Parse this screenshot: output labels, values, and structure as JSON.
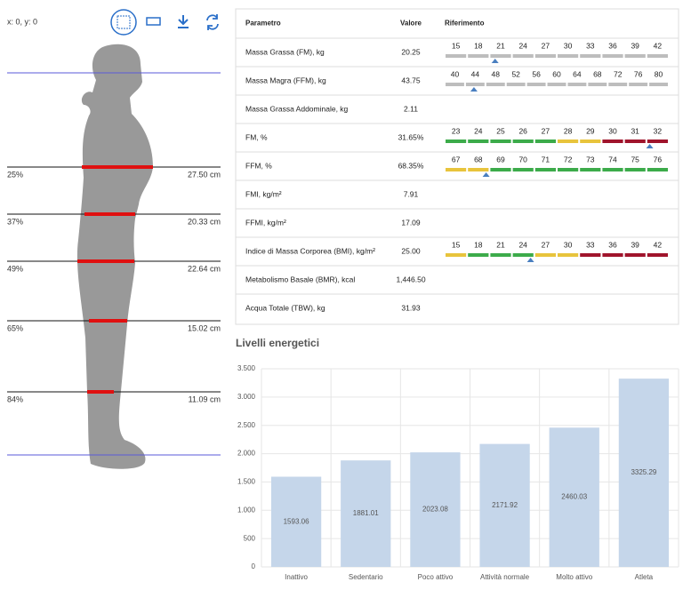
{
  "panel": {
    "coords": "x: 0, y: 0",
    "measures": [
      {
        "percent": "25%",
        "circumference": "27.50 cm"
      },
      {
        "percent": "37%",
        "circumference": "20.33 cm"
      },
      {
        "percent": "49%",
        "circumference": "22.64 cm"
      },
      {
        "percent": "65%",
        "circumference": "15.02 cm"
      },
      {
        "percent": "84%",
        "circumference": "11.09 cm"
      }
    ]
  },
  "table": {
    "headers": [
      "Parametro",
      "Valore",
      "Riferimento"
    ],
    "rows": [
      {
        "name": "Massa Grassa (FM), kg",
        "value": "20.25",
        "scale": {
          "ticks": [
            15,
            18,
            21,
            24,
            27,
            30,
            33,
            36,
            39,
            42
          ],
          "colors": [
            "#bdbdbd",
            "#bdbdbd",
            "#bdbdbd",
            "#bdbdbd",
            "#bdbdbd",
            "#bdbdbd",
            "#bdbdbd",
            "#bdbdbd",
            "#bdbdbd",
            "#bdbdbd"
          ]
        }
      },
      {
        "name": "Massa Magra (FFM), kg",
        "value": "43.75",
        "scale": {
          "ticks": [
            40,
            44,
            48,
            52,
            56,
            60,
            64,
            68,
            72,
            76,
            80
          ],
          "colors": [
            "#bdbdbd",
            "#bdbdbd",
            "#bdbdbd",
            "#bdbdbd",
            "#bdbdbd",
            "#bdbdbd",
            "#bdbdbd",
            "#bdbdbd",
            "#bdbdbd",
            "#bdbdbd",
            "#bdbdbd"
          ]
        }
      },
      {
        "name": "Massa Grassa Addominale, kg",
        "value": "2.11"
      },
      {
        "name": "FM, %",
        "value": "31.65%",
        "scale": {
          "ticks": [
            23,
            24,
            25,
            26,
            27,
            28,
            29,
            30,
            31,
            32
          ],
          "colors": [
            "#3cab4a",
            "#3cab4a",
            "#3cab4a",
            "#3cab4a",
            "#3cab4a",
            "#e8c43c",
            "#e8c43c",
            "#a0142c",
            "#a0142c",
            "#a0142c"
          ]
        }
      },
      {
        "name": "FFM, %",
        "value": "68.35%",
        "scale": {
          "ticks": [
            67,
            68,
            69,
            70,
            71,
            72,
            73,
            74,
            75,
            76
          ],
          "colors": [
            "#e8c43c",
            "#e8c43c",
            "#3cab4a",
            "#3cab4a",
            "#3cab4a",
            "#3cab4a",
            "#3cab4a",
            "#3cab4a",
            "#3cab4a",
            "#3cab4a"
          ]
        }
      },
      {
        "name": "FMI, kg/m²",
        "value": "7.91"
      },
      {
        "name": "FFMI, kg/m²",
        "value": "17.09"
      },
      {
        "name": "Indice di Massa Corporea (BMI), kg/m²",
        "value": "25.00",
        "scale": {
          "ticks": [
            15,
            18,
            21,
            24,
            27,
            30,
            33,
            36,
            39,
            42
          ],
          "colors": [
            "#e8c43c",
            "#3cab4a",
            "#3cab4a",
            "#3cab4a",
            "#e8c43c",
            "#e8c43c",
            "#a0142c",
            "#a0142c",
            "#a0142c",
            "#a0142c"
          ]
        }
      },
      {
        "name": "Metabolismo Basale (BMR), kcal",
        "value": "1,446.50"
      },
      {
        "name": "Acqua Totale (TBW), kg",
        "value": "31.93"
      }
    ]
  },
  "chart_data": {
    "type": "bar",
    "title": "Livelli energetici",
    "categories": [
      "Inattivo",
      "Sedentario",
      "Poco attivo",
      "Attività normale",
      "Molto attivo",
      "Atleta"
    ],
    "values": [
      1593.06,
      1881.01,
      2023.08,
      2171.92,
      2460.03,
      3325.29
    ],
    "color": "#c5d6ea",
    "ylim": [
      0,
      3500
    ],
    "yticks": [
      0,
      500,
      {
        "value": 1000,
        "label": "1.000"
      },
      {
        "value": 1500,
        "label": "1.500"
      },
      {
        "value": 2000,
        "label": "2.000"
      },
      {
        "value": 2500,
        "label": "2.500"
      },
      {
        "value": 3000,
        "label": "3.000"
      },
      {
        "value": 3500,
        "label": "3.500"
      }
    ],
    "grid": true
  }
}
